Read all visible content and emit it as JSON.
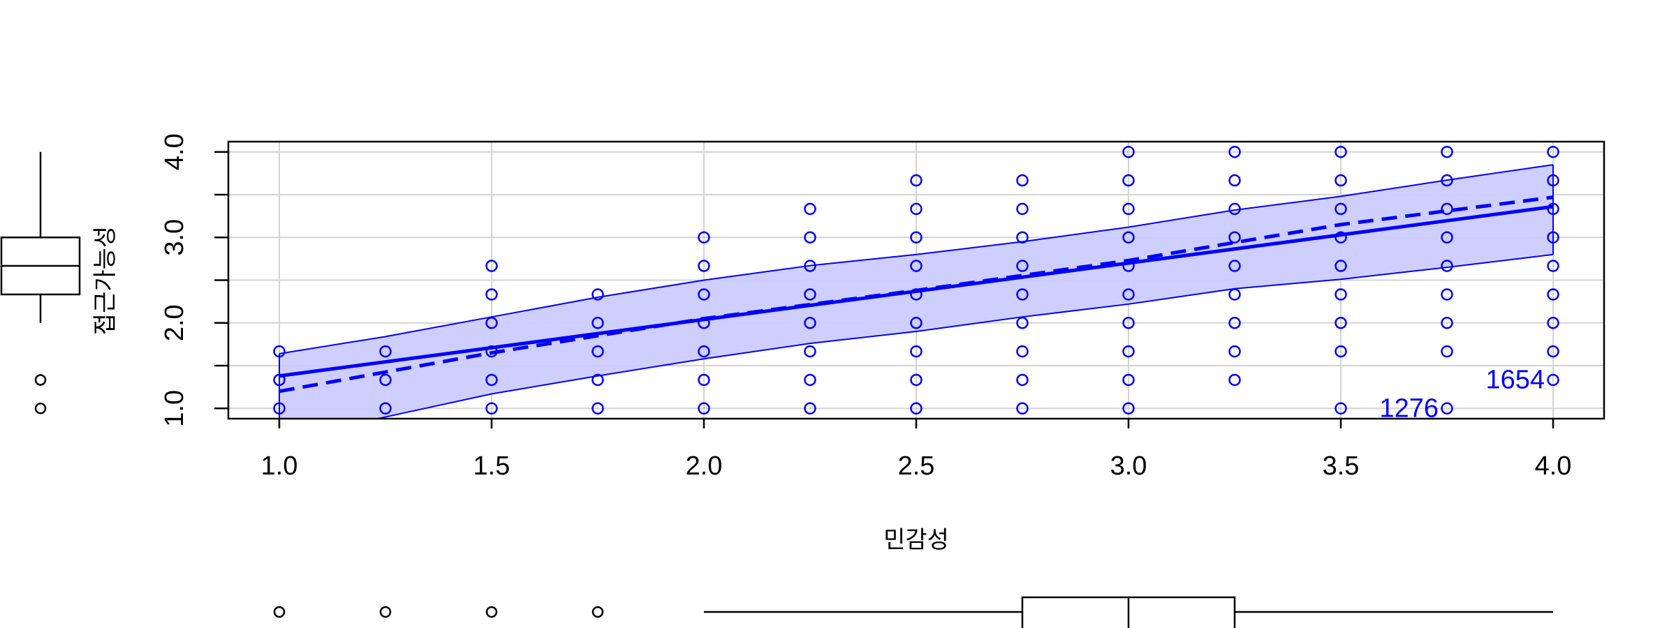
{
  "chart_data": {
    "type": "scatter",
    "xlabel": "민감성",
    "ylabel": "접근가능성",
    "xlim": [
      0.88,
      4.12
    ],
    "ylim": [
      0.88,
      4.12
    ],
    "x_ticks": [
      "1.0",
      "1.5",
      "2.0",
      "2.5",
      "3.0",
      "3.5",
      "4.0"
    ],
    "y_ticks": [
      "1.0",
      "2.0",
      "3.0",
      "4.0"
    ],
    "grid": true,
    "colors": {
      "points": "#0000ff",
      "fit_line": "#0000ff",
      "band_fill": "#ccccff",
      "grid": "#d3d3d3",
      "axis": "#000000"
    },
    "points": [
      {
        "x": 1.0,
        "ys": [
          1.0,
          1.333,
          1.667
        ]
      },
      {
        "x": 1.25,
        "ys": [
          1.0,
          1.333,
          1.667
        ]
      },
      {
        "x": 1.5,
        "ys": [
          1.0,
          1.333,
          1.667,
          2.0,
          2.333,
          2.667
        ]
      },
      {
        "x": 1.75,
        "ys": [
          1.0,
          1.333,
          1.667,
          2.0,
          2.333
        ]
      },
      {
        "x": 2.0,
        "ys": [
          1.0,
          1.333,
          1.667,
          2.0,
          2.333,
          2.667,
          3.0
        ]
      },
      {
        "x": 2.25,
        "ys": [
          1.0,
          1.333,
          1.667,
          2.0,
          2.333,
          2.667,
          3.0,
          3.333
        ]
      },
      {
        "x": 2.5,
        "ys": [
          1.0,
          1.333,
          1.667,
          2.0,
          2.333,
          2.667,
          3.0,
          3.333,
          3.667
        ]
      },
      {
        "x": 2.75,
        "ys": [
          1.0,
          1.333,
          1.667,
          2.0,
          2.333,
          2.667,
          3.0,
          3.333,
          3.667
        ]
      },
      {
        "x": 3.0,
        "ys": [
          1.0,
          1.333,
          1.667,
          2.0,
          2.333,
          2.667,
          3.0,
          3.333,
          3.667,
          4.0
        ]
      },
      {
        "x": 3.25,
        "ys": [
          1.333,
          1.667,
          2.0,
          2.333,
          2.667,
          3.0,
          3.333,
          3.667,
          4.0
        ]
      },
      {
        "x": 3.5,
        "ys": [
          1.0,
          1.667,
          2.0,
          2.333,
          2.667,
          3.0,
          3.333,
          3.667,
          4.0
        ]
      },
      {
        "x": 3.75,
        "ys": [
          1.0,
          1.667,
          2.0,
          2.333,
          2.667,
          3.0,
          3.333,
          3.667,
          4.0
        ]
      },
      {
        "x": 4.0,
        "ys": [
          1.333,
          1.667,
          2.0,
          2.333,
          2.667,
          3.0,
          3.333,
          3.667,
          4.0
        ]
      }
    ],
    "point_labels": [
      {
        "text": "1276",
        "x": 3.75,
        "y": 1.0
      },
      {
        "text": "1654",
        "x": 4.0,
        "y": 1.333
      }
    ],
    "linear_fit": {
      "x": [
        1.0,
        4.0
      ],
      "y": [
        1.38,
        3.36
      ]
    },
    "smooth_fit": {
      "x": [
        1.0,
        1.5,
        2.0,
        2.5,
        3.0,
        3.5,
        4.0
      ],
      "y": [
        1.2,
        1.65,
        2.05,
        2.38,
        2.73,
        3.15,
        3.47
      ]
    },
    "confidence_band": {
      "x": [
        1.0,
        1.25,
        1.5,
        1.75,
        2.0,
        2.25,
        2.5,
        2.75,
        3.0,
        3.25,
        3.5,
        3.75,
        4.0
      ],
      "upper": [
        1.64,
        1.84,
        2.07,
        2.3,
        2.5,
        2.67,
        2.8,
        2.95,
        3.12,
        3.32,
        3.48,
        3.67,
        3.85
      ],
      "lower": [
        0.63,
        0.9,
        1.17,
        1.38,
        1.58,
        1.76,
        1.9,
        2.07,
        2.22,
        2.4,
        2.51,
        2.65,
        2.8
      ]
    },
    "boxplot_x": {
      "min": 2.0,
      "q1": 2.75,
      "median": 3.0,
      "q3": 3.25,
      "max": 4.0,
      "outliers": [
        1.0,
        1.25,
        1.5,
        1.75
      ]
    },
    "boxplot_y": {
      "min": 2.0,
      "q1": 2.333,
      "median": 2.667,
      "q3": 3.0,
      "max": 4.0,
      "outliers": [
        1.0,
        1.333
      ]
    }
  }
}
